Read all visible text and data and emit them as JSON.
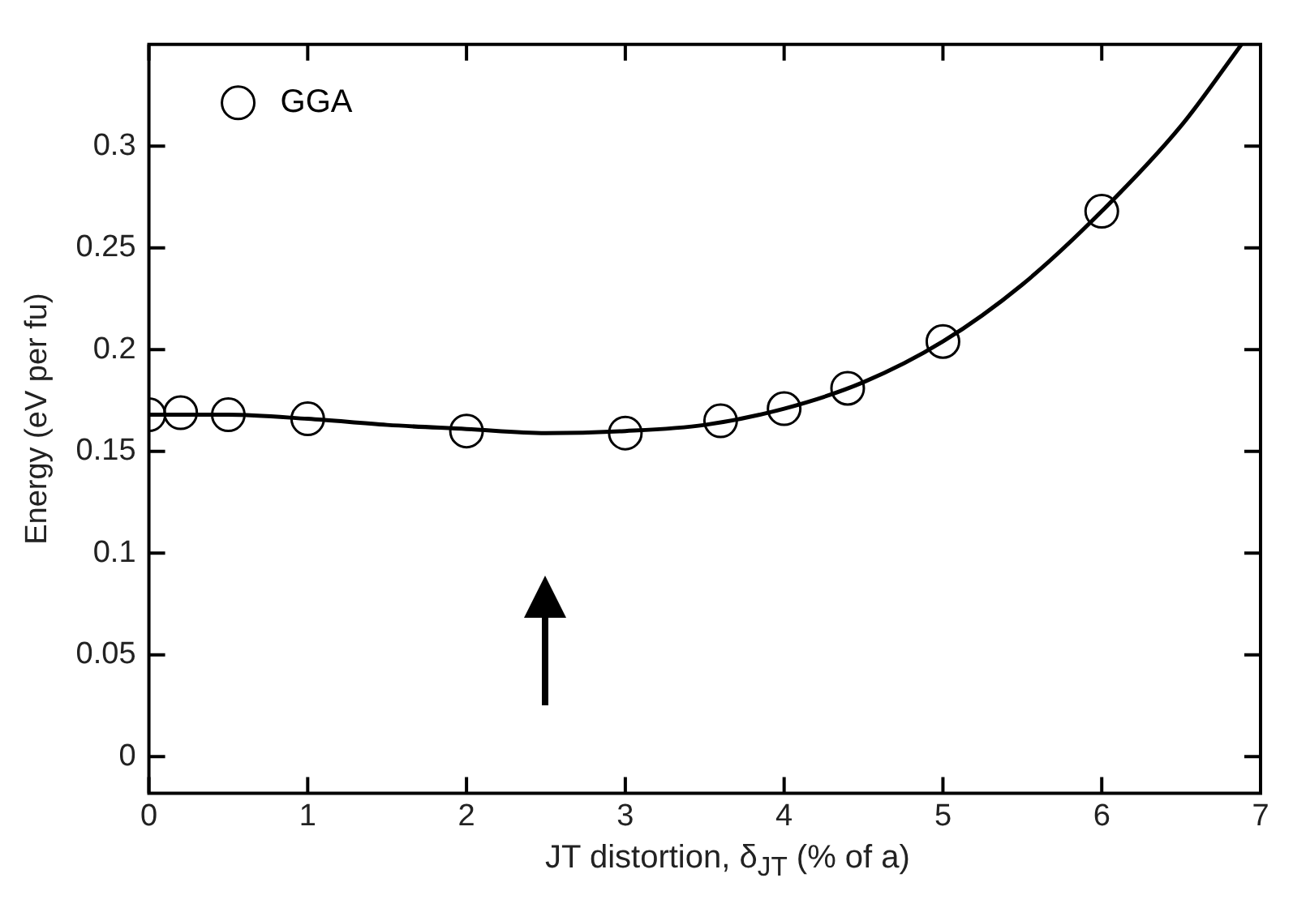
{
  "chart_data": {
    "type": "scatter",
    "xlabel": "JT distortion, δ$_{JT}$ (% of a)",
    "ylabel": "Energy (eV per fu)",
    "xlim": [
      0,
      7
    ],
    "xticks": [
      0,
      1,
      2,
      3,
      4,
      5,
      6,
      7
    ],
    "ylim": [
      -0.018,
      0.35
    ],
    "yticks": [
      0,
      0.05,
      0.1,
      0.15,
      0.2,
      0.25,
      0.3
    ],
    "grid": false,
    "legend": "top left",
    "series": [
      {
        "name": "GGA",
        "marker": "circle",
        "color": "#000000",
        "x": [
          0,
          0.2,
          0.5,
          1,
          2,
          3,
          3.6,
          4,
          4.4,
          5,
          6
        ],
        "values": [
          0.168,
          0.169,
          0.168,
          0.166,
          0.16,
          0.159,
          0.165,
          0.171,
          0.181,
          0.204,
          0.268
        ]
      },
      {
        "type": "line",
        "marker": "none",
        "color": "#000000",
        "x": [
          0,
          0.5,
          1,
          1.5,
          2,
          2.5,
          3,
          3.5,
          4,
          4.5,
          5,
          5.5,
          6,
          6.5,
          6.88
        ],
        "values": [
          0.168,
          0.168,
          0.166,
          0.163,
          0.161,
          0.159,
          0.16,
          0.163,
          0.171,
          0.184,
          0.204,
          0.232,
          0.268,
          0.31,
          0.35
        ]
      }
    ]
  }
}
